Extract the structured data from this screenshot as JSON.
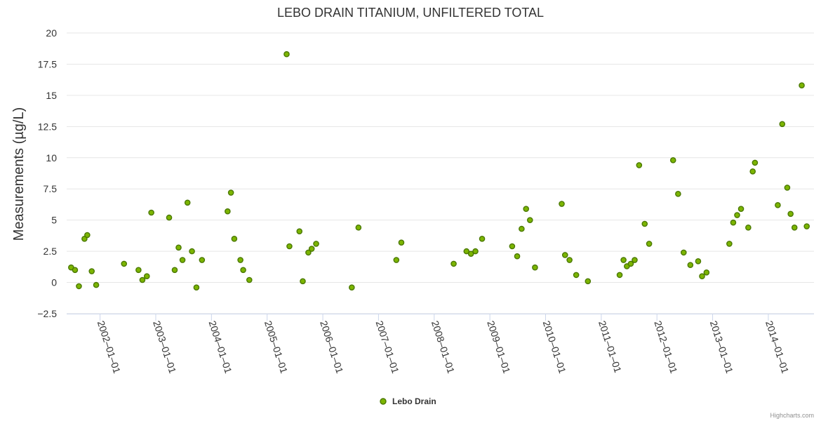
{
  "colors": {
    "marker_fill": "#7cb500",
    "marker_stroke": "#4a7800"
  },
  "credits": "Highcharts.com",
  "chart_data": {
    "type": "scatter",
    "title": "LEBO DRAIN TITANIUM, UNFILTERED TOTAL",
    "xlabel": "",
    "ylabel": "Measurements (µg/L)",
    "xlim": [
      2001.4,
      2014.82
    ],
    "ylim": [
      -2.5,
      20
    ],
    "y_ticks": [
      -2.5,
      0,
      2.5,
      5,
      7.5,
      10,
      12.5,
      15,
      17.5,
      20
    ],
    "y_tick_labels": [
      "−2.5",
      "0",
      "2.5",
      "5",
      "7.5",
      "10",
      "12.5",
      "15",
      "17.5",
      "20"
    ],
    "x_ticks": [
      2002,
      2003,
      2004,
      2005,
      2006,
      2007,
      2008,
      2009,
      2010,
      2011,
      2012,
      2013,
      2014
    ],
    "x_tick_labels": [
      "2002–01–01",
      "2003–01–01",
      "2004–01–01",
      "2005–01–01",
      "2006–01–01",
      "2007–01–01",
      "2008–01–01",
      "2009–01–01",
      "2010–01–01",
      "2011–01–01",
      "2012–01–01",
      "2013–01–01",
      "2014–01–01"
    ],
    "legend": "bottom-center",
    "series": [
      {
        "name": "Lebo Drain",
        "x": [
          2001.48,
          2001.55,
          2001.62,
          2001.72,
          2001.77,
          2001.85,
          2001.93,
          2002.43,
          2002.69,
          2002.76,
          2002.84,
          2002.92,
          2003.24,
          2003.34,
          2003.41,
          2003.48,
          2003.57,
          2003.65,
          2003.73,
          2003.83,
          2004.29,
          2004.35,
          2004.41,
          2004.52,
          2004.57,
          2004.68,
          2005.35,
          2005.4,
          2005.58,
          2005.64,
          2005.74,
          2005.8,
          2005.88,
          2006.52,
          2006.64,
          2007.32,
          2007.41,
          2008.35,
          2008.58,
          2008.66,
          2008.74,
          2008.86,
          2009.4,
          2009.49,
          2009.57,
          2009.65,
          2009.72,
          2009.81,
          2010.29,
          2010.35,
          2010.43,
          2010.55,
          2010.76,
          2011.33,
          2011.4,
          2011.46,
          2011.53,
          2011.6,
          2011.68,
          2011.78,
          2011.86,
          2012.29,
          2012.38,
          2012.48,
          2012.6,
          2012.74,
          2012.81,
          2012.89,
          2013.3,
          2013.37,
          2013.44,
          2013.51,
          2013.64,
          2013.72,
          2013.76,
          2014.17,
          2014.25,
          2014.34,
          2014.4,
          2014.47,
          2014.6,
          2014.69
        ],
        "y": [
          1.2,
          1.0,
          -0.3,
          3.5,
          3.8,
          0.9,
          -0.2,
          1.5,
          1.0,
          0.2,
          0.5,
          5.6,
          5.2,
          1.0,
          2.8,
          1.8,
          6.4,
          2.5,
          -0.4,
          1.8,
          5.7,
          7.2,
          3.5,
          1.8,
          1.0,
          0.2,
          18.3,
          2.9,
          4.1,
          0.1,
          2.4,
          2.7,
          3.1,
          -0.4,
          4.4,
          1.8,
          3.2,
          1.5,
          2.5,
          2.3,
          2.5,
          3.5,
          2.9,
          2.1,
          4.3,
          5.9,
          5.0,
          1.2,
          6.3,
          2.2,
          1.8,
          0.6,
          0.1,
          0.6,
          1.8,
          1.3,
          1.5,
          1.8,
          9.4,
          4.7,
          3.1,
          9.8,
          7.1,
          2.4,
          1.4,
          1.7,
          0.5,
          0.8,
          3.1,
          4.8,
          5.4,
          5.9,
          4.4,
          8.9,
          9.6,
          6.2,
          12.7,
          7.6,
          5.5,
          4.4,
          15.8,
          4.5
        ]
      }
    ]
  }
}
